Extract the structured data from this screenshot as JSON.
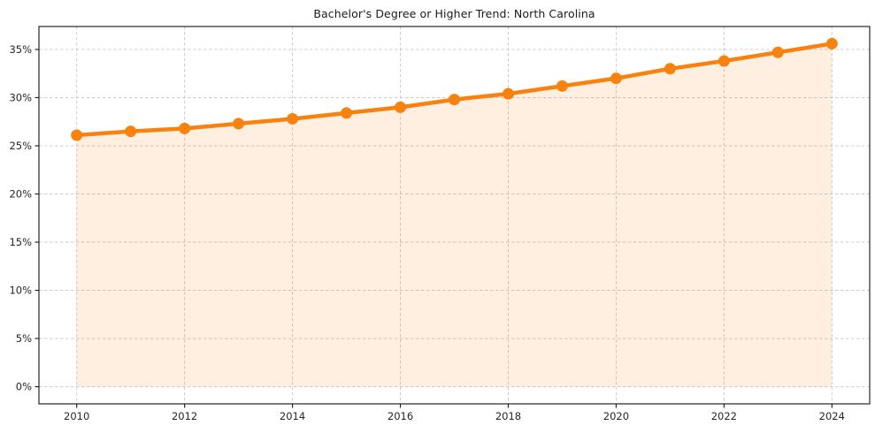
{
  "chart_data": {
    "type": "line",
    "title": "Bachelor's Degree or Higher Trend: North Carolina",
    "x": [
      2010,
      2011,
      2012,
      2013,
      2014,
      2015,
      2016,
      2017,
      2018,
      2019,
      2020,
      2021,
      2022,
      2023,
      2024
    ],
    "series": [
      {
        "name": "Bachelor's Degree or Higher",
        "values": [
          26.1,
          26.5,
          26.8,
          27.3,
          27.8,
          28.4,
          29.0,
          29.8,
          30.4,
          31.2,
          32.0,
          33.0,
          33.8,
          34.7,
          35.6
        ]
      }
    ],
    "xlabel": "",
    "ylabel": "",
    "x_ticks": [
      2010,
      2012,
      2014,
      2016,
      2018,
      2020,
      2022,
      2024
    ],
    "x_tick_labels": [
      "2010",
      "2012",
      "2014",
      "2016",
      "2018",
      "2020",
      "2022",
      "2024"
    ],
    "y_ticks": [
      0,
      5,
      10,
      15,
      20,
      25,
      30,
      35
    ],
    "y_tick_labels": [
      "0%",
      "5%",
      "10%",
      "15%",
      "20%",
      "25%",
      "30%",
      "35%"
    ],
    "xlim": [
      2009.3,
      2024.7
    ],
    "ylim": [
      -1.78,
      37.38
    ],
    "grid": true,
    "grid_style": "dashed",
    "legend": false,
    "fill_to_zero": true,
    "colors": {
      "line": "#f7820f",
      "marker": "#f7820f",
      "fill": "rgba(247,130,15,0.13)",
      "grid": "#cccccc",
      "spine": "#262626",
      "text": "#262626",
      "title": "#1a1a1a",
      "background": "#ffffff"
    }
  }
}
